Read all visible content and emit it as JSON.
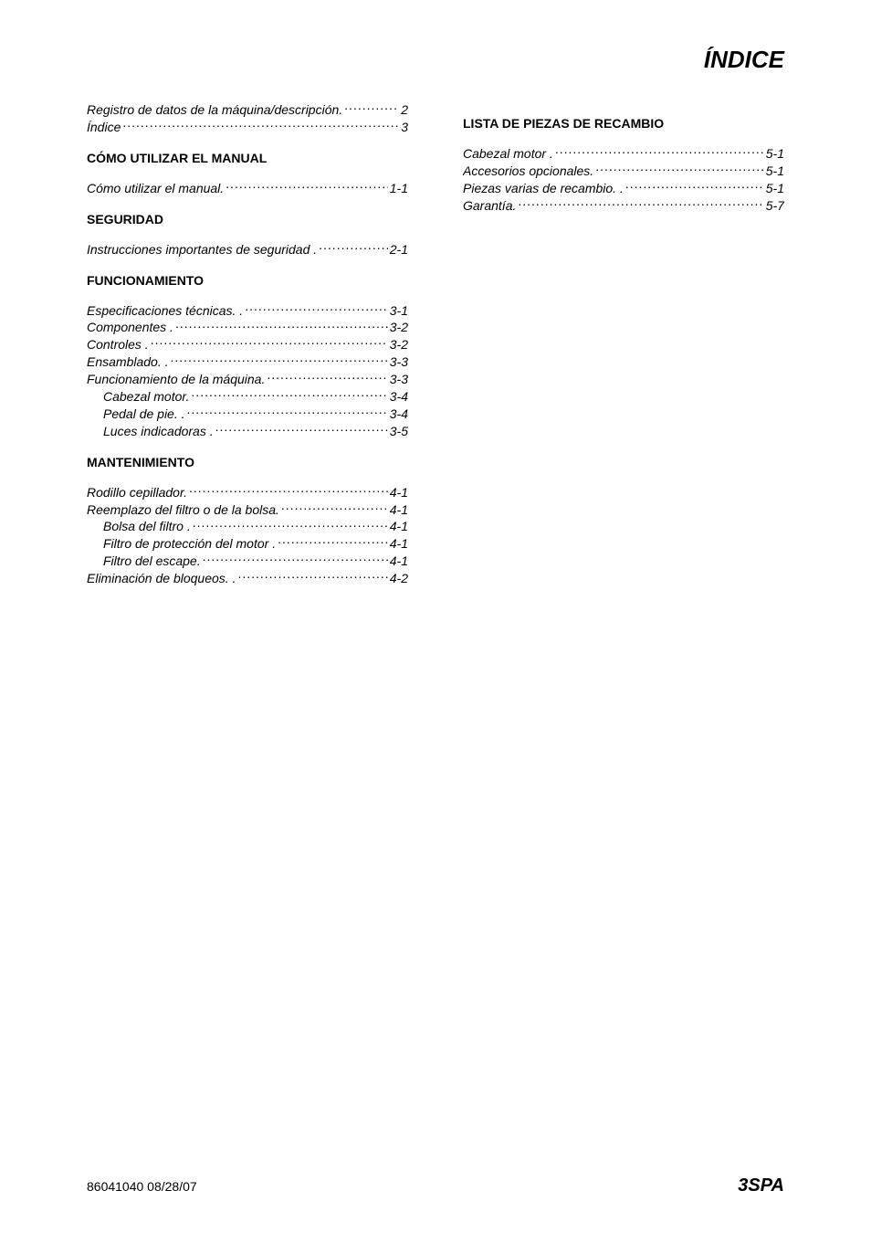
{
  "page": {
    "title": "ÍNDICE",
    "footer_left": "86041040  08/28/07",
    "footer_right": "3SPA"
  },
  "left_column": {
    "intro": [
      {
        "label": "Registro de datos de la máquina/descripción.",
        "page": "2",
        "indent": false
      },
      {
        "label": "Índice",
        "page": "3",
        "indent": false
      }
    ],
    "sections": [
      {
        "heading": "CÓMO UTILIZAR EL MANUAL",
        "entries": [
          {
            "label": "Cómo utilizar el manual.",
            "page": "1-1",
            "indent": false
          }
        ]
      },
      {
        "heading": "SEGURIDAD",
        "entries": [
          {
            "label": "Instrucciones importantes de seguridad .",
            "page": "2-1",
            "indent": false
          }
        ]
      },
      {
        "heading": "FUNCIONAMIENTO",
        "entries": [
          {
            "label": "Especificaciones técnicas. .",
            "page": "3-1",
            "indent": false
          },
          {
            "label": "Componentes .",
            "page": "3-2",
            "indent": false
          },
          {
            "label": "Controles .",
            "page": "3-2",
            "indent": false
          },
          {
            "label": "Ensamblado. .",
            "page": "3-3",
            "indent": false
          },
          {
            "label": "Funcionamiento de la máquina.",
            "page": "3-3",
            "indent": false
          },
          {
            "label": "Cabezal motor.",
            "page": "3-4",
            "indent": true
          },
          {
            "label": "Pedal de pie. .",
            "page": "3-4",
            "indent": true
          },
          {
            "label": "Luces indicadoras .",
            "page": "3-5",
            "indent": true
          }
        ]
      },
      {
        "heading": "MANTENIMIENTO",
        "entries": [
          {
            "label": "Rodillo cepillador.",
            "page": "4-1",
            "indent": false
          },
          {
            "label": "Reemplazo del filtro o de la bolsa.",
            "page": "4-1",
            "indent": false
          },
          {
            "label": "Bolsa del filtro .",
            "page": "4-1",
            "indent": true
          },
          {
            "label": "Filtro de protección del motor .",
            "page": "4-1",
            "indent": true
          },
          {
            "label": "Filtro del escape.",
            "page": "4-1",
            "indent": true
          },
          {
            "label": "Eliminación de bloqueos. .",
            "page": "4-2",
            "indent": false
          }
        ]
      }
    ]
  },
  "right_column": {
    "sections": [
      {
        "heading": "LISTA DE PIEZAS DE RECAMBIO",
        "entries": [
          {
            "label": "Cabezal motor .",
            "page": "5-1",
            "indent": false
          },
          {
            "label": "Accesorios opcionales.",
            "page": "5-1",
            "indent": false
          },
          {
            "label": "Piezas varias de recambio. .",
            "page": "5-1",
            "indent": false
          },
          {
            "label": "Garantía.",
            "page": "5-7",
            "indent": false
          }
        ]
      }
    ]
  }
}
